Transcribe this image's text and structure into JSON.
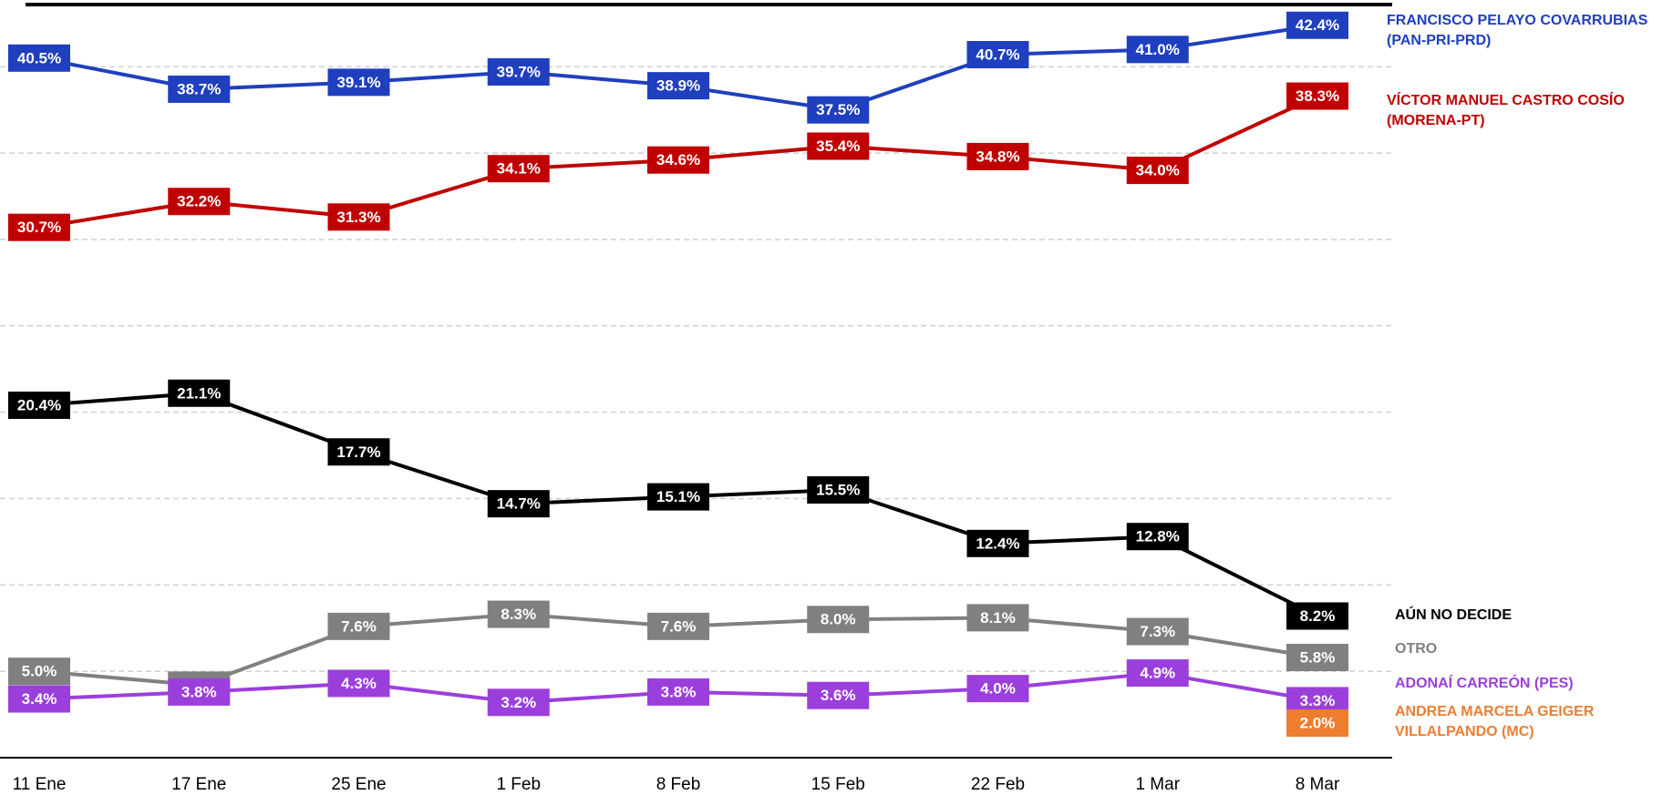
{
  "chart_data": {
    "type": "line",
    "categories": [
      "11 Ene",
      "17 Ene",
      "25 Ene",
      "1 Feb",
      "8 Feb",
      "15 Feb",
      "22 Feb",
      "1 Mar",
      "8 Mar"
    ],
    "ylim": [
      0,
      43.6
    ],
    "yticks": [
      5,
      10,
      15,
      20,
      25,
      30,
      35,
      40
    ],
    "grid": true,
    "series": [
      {
        "name": "FRANCISCO PELAYO COVARRUBIAS (PAN-PRI-PRD)",
        "color": "#1f3fbf",
        "values": [
          40.5,
          38.7,
          39.1,
          39.7,
          38.9,
          37.5,
          40.7,
          41.0,
          42.4
        ],
        "value_labels": [
          "40.5%",
          "38.7%",
          "39.1%",
          "39.7%",
          "38.9%",
          "37.5%",
          "40.7%",
          "41.0%",
          "42.4%"
        ]
      },
      {
        "name": "VÍCTOR MANUEL CASTRO COSÍO (MORENA-PT)",
        "color": "#c00000",
        "values": [
          30.7,
          32.2,
          31.3,
          34.1,
          34.6,
          35.4,
          34.8,
          34.0,
          38.3
        ],
        "value_labels": [
          "30.7%",
          "32.2%",
          "31.3%",
          "34.1%",
          "34.6%",
          "35.4%",
          "34.8%",
          "34.0%",
          "38.3%"
        ]
      },
      {
        "name": "AÚN NO DECIDE",
        "color": "#000000",
        "values": [
          20.4,
          21.1,
          17.7,
          14.7,
          15.1,
          15.5,
          12.4,
          12.8,
          8.2
        ],
        "value_labels": [
          "20.4%",
          "21.1%",
          "17.7%",
          "14.7%",
          "15.1%",
          "15.5%",
          "12.4%",
          "12.8%",
          "8.2%"
        ]
      },
      {
        "name": "OTRO",
        "color": "#808080",
        "values": [
          5.0,
          4.2,
          7.6,
          8.3,
          7.6,
          8.0,
          8.1,
          7.3,
          5.8
        ],
        "value_labels": [
          "5.0%",
          "4.2%",
          "7.6%",
          "8.3%",
          "7.6%",
          "8.0%",
          "8.1%",
          "7.3%",
          "5.8%"
        ]
      },
      {
        "name": "ADONAÍ CARREÓN (PES)",
        "color": "#9b3fdc",
        "values": [
          3.4,
          3.8,
          4.3,
          3.2,
          3.8,
          3.6,
          4.0,
          4.9,
          3.3
        ],
        "value_labels": [
          "3.4%",
          "3.8%",
          "4.3%",
          "3.2%",
          "3.8%",
          "3.6%",
          "4.0%",
          "4.9%",
          "3.3%"
        ]
      },
      {
        "name": "ANDREA MARCELA GEIGER VILLALPANDO (MC)",
        "color": "#ed7d31",
        "values": [
          null,
          null,
          null,
          null,
          null,
          null,
          null,
          null,
          2.0
        ],
        "value_labels": [
          null,
          null,
          null,
          null,
          null,
          null,
          null,
          null,
          "2.0%"
        ]
      }
    ]
  }
}
